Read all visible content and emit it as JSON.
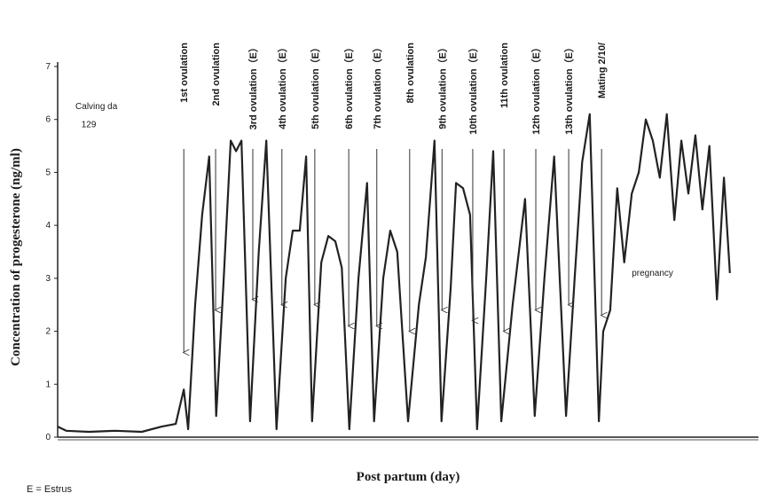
{
  "chart_data": {
    "type": "line",
    "ylabel": "Concentration of  progesterone (ng/ml)",
    "xlabel": "Post partum (day)",
    "footnote": "E = Estrus",
    "color": "#222222",
    "xlim": [
      0,
      130
    ],
    "ylim": [
      0,
      7
    ],
    "yticks": [
      0,
      1,
      2,
      3,
      4,
      5,
      6,
      7
    ],
    "x": [
      0,
      1.6,
      5.8,
      10.7,
      15.6,
      19.3,
      21.9,
      23.4,
      24.2,
      25.5,
      26.8,
      28.1,
      29.4,
      30.7,
      32.1,
      33.1,
      34.1,
      35.7,
      37.3,
      38.7,
      40.6,
      42.3,
      43.6,
      44.9,
      46.1,
      47.2,
      48.9,
      50.2,
      51.5,
      52.7,
      54.1,
      55.8,
      57.4,
      58.7,
      60.4,
      61.7,
      63.0,
      65.0,
      67.0,
      68.3,
      69.9,
      71.2,
      72.9,
      73.9,
      75.2,
      76.5,
      77.8,
      79.5,
      80.8,
      82.3,
      84.4,
      86.7,
      88.5,
      90.3,
      92.1,
      94.3,
      95.9,
      97.3,
      98.7,
      100.4,
      101.2,
      102.5,
      103.8,
      105.1,
      106.5,
      107.8,
      109.1,
      110.4,
      111.7,
      113.0,
      114.4,
      115.7,
      117.0,
      118.3,
      119.6,
      120.9,
      122.3,
      123.6,
      124.7
    ],
    "values": [
      0.2,
      0.12,
      0.1,
      0.12,
      0.1,
      0.2,
      0.25,
      0.9,
      0.15,
      2.5,
      4.2,
      5.3,
      0.4,
      2.8,
      5.6,
      5.4,
      5.6,
      0.3,
      3.5,
      5.6,
      0.15,
      3.0,
      3.9,
      3.9,
      5.3,
      0.3,
      3.3,
      3.8,
      3.7,
      3.2,
      0.15,
      3.0,
      4.8,
      0.3,
      3.0,
      3.9,
      3.5,
      0.3,
      2.5,
      3.4,
      5.6,
      0.3,
      2.8,
      4.8,
      4.7,
      4.2,
      0.15,
      3.0,
      5.4,
      0.3,
      2.5,
      4.5,
      0.4,
      3.0,
      5.3,
      0.4,
      3.0,
      5.2,
      6.1,
      0.3,
      2.0,
      2.4,
      4.7,
      3.3,
      4.6,
      5.0,
      6.0,
      5.6,
      4.9,
      6.1,
      4.1,
      5.6,
      4.6,
      5.7,
      4.3,
      5.5,
      2.6,
      4.9,
      3.1
    ],
    "annotations": [
      {
        "text": "1st ovulation",
        "x": 23.4,
        "y": 1.6
      },
      {
        "text": "2nd ovulation",
        "x": 29.3,
        "y": 2.4
      },
      {
        "text": "3rd ovulation（E）",
        "x": 36.2,
        "y": 2.6
      },
      {
        "text": "4th ovulation（E）",
        "x": 41.6,
        "y": 2.5
      },
      {
        "text": "5th ovulation（E）",
        "x": 47.7,
        "y": 2.5
      },
      {
        "text": "6th ovulation（E）",
        "x": 54.0,
        "y": 2.1
      },
      {
        "text": "7th ovulation（E）",
        "x": 59.2,
        "y": 2.1
      },
      {
        "text": "8th ovulation",
        "x": 65.3,
        "y": 2.0
      },
      {
        "text": "9th ovulation（E）",
        "x": 71.3,
        "y": 2.4
      },
      {
        "text": "10th ovulation（E）",
        "x": 77.0,
        "y": 2.2
      },
      {
        "text": "11th ovulation",
        "x": 82.8,
        "y": 2.0
      },
      {
        "text": "12th ovulation（E）",
        "x": 88.7,
        "y": 2.4
      },
      {
        "text": "13th ovulation（E）",
        "x": 94.8,
        "y": 2.5
      },
      {
        "text": "Mating 2/10/",
        "x": 100.9,
        "y": 2.3
      }
    ],
    "notes": [
      {
        "text": "Calving da",
        "x": 3.3,
        "y": 6.2
      },
      {
        "text": "129",
        "x": 4.4,
        "y": 5.85
      },
      {
        "text": "pregnancy",
        "x": 106.5,
        "y": 3.05
      }
    ]
  }
}
